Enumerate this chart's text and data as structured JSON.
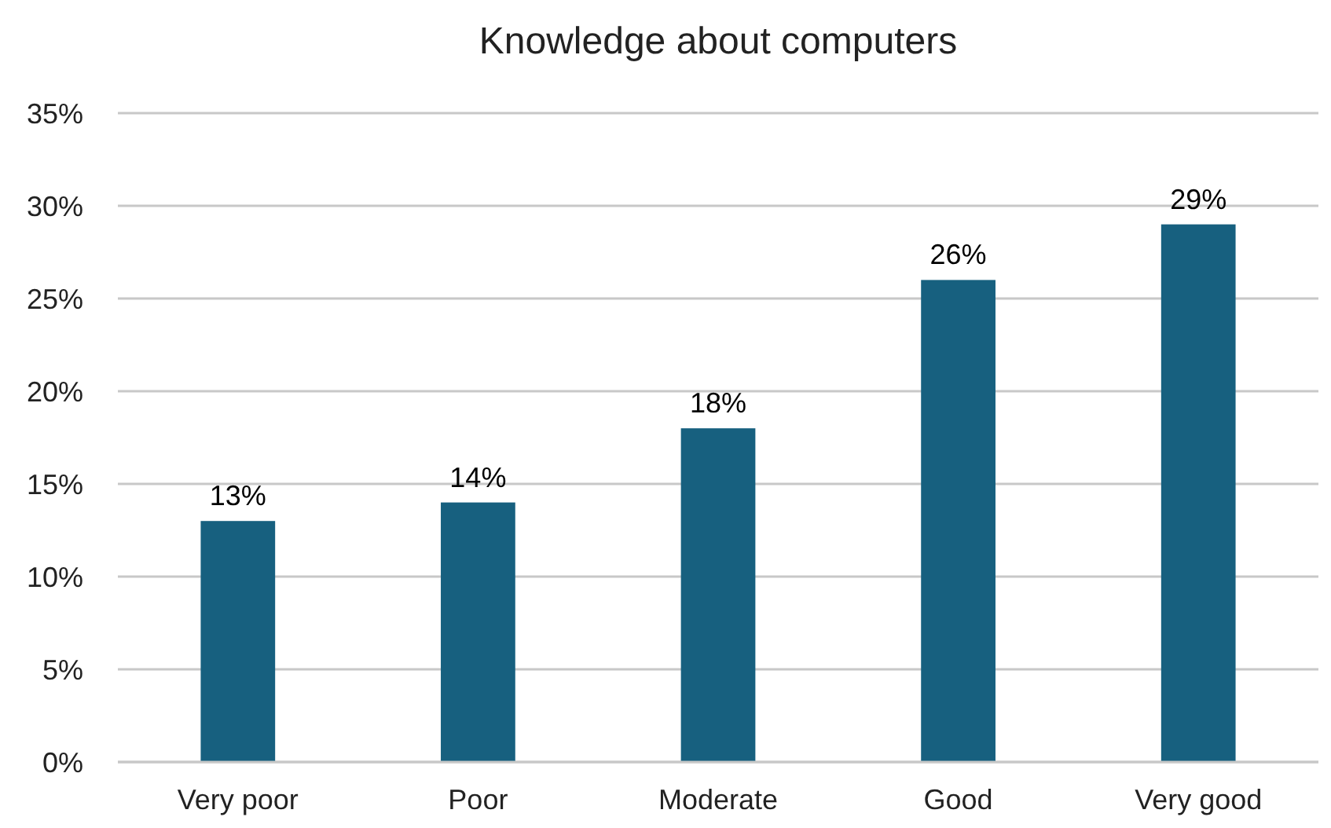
{
  "chart_data": {
    "type": "bar",
    "title": "Knowledge about computers",
    "categories": [
      "Very poor",
      "Poor",
      "Moderate",
      "Good",
      "Very good"
    ],
    "values": [
      13,
      14,
      18,
      26,
      29
    ],
    "value_labels": [
      "13%",
      "14%",
      "18%",
      "26%",
      "29%"
    ],
    "color": "#17607f",
    "ylim": [
      0,
      35
    ],
    "yticks": [
      {
        "value": 0,
        "label": "0%"
      },
      {
        "value": 5,
        "label": "5%"
      },
      {
        "value": 10,
        "label": "10%"
      },
      {
        "value": 15,
        "label": "15%"
      },
      {
        "value": 20,
        "label": "20%"
      },
      {
        "value": 25,
        "label": "25%"
      },
      {
        "value": 30,
        "label": "30%"
      },
      {
        "value": 35,
        "label": "35%"
      }
    ],
    "grid": "y"
  }
}
